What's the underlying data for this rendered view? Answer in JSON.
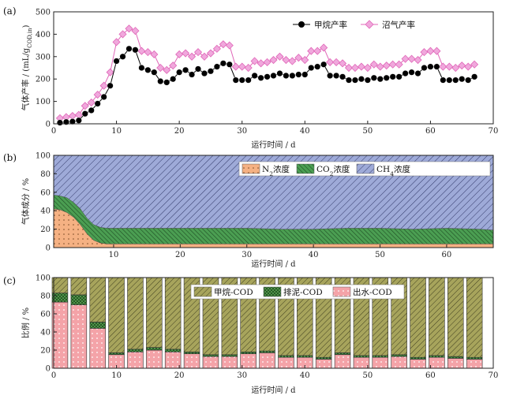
{
  "colors": {
    "methane_line": "#000000",
    "methane_marker": "#000000",
    "biogas_line": "#e066b8",
    "biogas_marker": "#f0a8dc",
    "n2_fill": "#f5b183",
    "co2_fill": "#4b9e52",
    "ch4_fill": "#9eaad8",
    "ch4_hatch": "#333a6a",
    "methane_cod_fill": "#a7a45c",
    "sludge_cod_fill": "#5aa352",
    "effluent_cod_fill": "#f4a3a8"
  },
  "chart_data": [
    {
      "panel_label": "(a)",
      "type": "line",
      "xlabel": "运行时间 / d",
      "ylabel_main": "气体产率 / (mL/g",
      "ylabel_sub": "COD,in",
      "ylabel_end": ")",
      "xlim": [
        0,
        70
      ],
      "ylim": [
        0,
        500
      ],
      "xticks": [
        "0",
        "10",
        "20",
        "30",
        "40",
        "50",
        "60",
        "70"
      ],
      "yticks": [
        "0",
        "100",
        "200",
        "300",
        "400",
        "500"
      ],
      "legend": "top-right",
      "x": [
        1,
        2,
        3,
        4,
        5,
        6,
        7,
        8,
        9,
        10,
        11,
        12,
        13,
        14,
        15,
        16,
        17,
        18,
        19,
        20,
        21,
        22,
        23,
        24,
        25,
        26,
        27,
        28,
        29,
        30,
        31,
        32,
        33,
        34,
        35,
        36,
        37,
        38,
        39,
        40,
        41,
        42,
        43,
        44,
        45,
        46,
        47,
        48,
        49,
        50,
        51,
        52,
        53,
        54,
        55,
        56,
        57,
        58,
        59,
        60,
        61,
        62,
        63,
        64,
        65,
        66,
        67
      ],
      "series": [
        {
          "name": "甲烷产率",
          "values": [
            5,
            8,
            10,
            15,
            45,
            60,
            90,
            120,
            170,
            280,
            300,
            335,
            330,
            250,
            240,
            230,
            190,
            185,
            200,
            230,
            240,
            220,
            245,
            225,
            235,
            255,
            270,
            265,
            195,
            195,
            195,
            215,
            205,
            210,
            215,
            225,
            215,
            215,
            220,
            220,
            250,
            255,
            265,
            215,
            215,
            210,
            195,
            195,
            200,
            195,
            205,
            200,
            205,
            210,
            210,
            225,
            230,
            225,
            250,
            255,
            255,
            195,
            195,
            195,
            200,
            195,
            210
          ]
        },
        {
          "name": "沼气产率",
          "values": [
            25,
            30,
            35,
            40,
            80,
            95,
            130,
            170,
            230,
            365,
            400,
            425,
            415,
            325,
            320,
            310,
            250,
            240,
            260,
            310,
            315,
            300,
            320,
            300,
            315,
            335,
            355,
            350,
            255,
            255,
            250,
            280,
            270,
            275,
            285,
            300,
            285,
            280,
            295,
            285,
            325,
            325,
            340,
            275,
            275,
            270,
            250,
            250,
            255,
            250,
            265,
            255,
            260,
            265,
            265,
            290,
            290,
            285,
            320,
            325,
            325,
            255,
            255,
            250,
            260,
            255,
            265
          ]
        }
      ]
    },
    {
      "panel_label": "(b)",
      "type": "area",
      "stacked": true,
      "xlabel": "运行时间 / d",
      "ylabel": "气体成分 / %",
      "xlim": [
        1,
        67
      ],
      "ylim": [
        0,
        100
      ],
      "xticks": [
        "10",
        "20",
        "30",
        "40",
        "50",
        "60"
      ],
      "yticks": [
        "0",
        "20",
        "40",
        "60",
        "80",
        "100"
      ],
      "legend": "top-right",
      "x": [
        1,
        2,
        3,
        4,
        5,
        6,
        7,
        8,
        9,
        10,
        12,
        15,
        20,
        25,
        30,
        35,
        40,
        45,
        50,
        55,
        60,
        65,
        67
      ],
      "series": [
        {
          "name": "N2浓度",
          "legend_main": "N",
          "legend_sub": "2",
          "legend_end": "浓度",
          "values": [
            42,
            41,
            38,
            33,
            25,
            15,
            8,
            5,
            4,
            4,
            4,
            4,
            4,
            4,
            4,
            4,
            4,
            4,
            4,
            4,
            4,
            4,
            4
          ]
        },
        {
          "name": "CO2浓度",
          "legend_main": "CO",
          "legend_sub": "2",
          "legend_end": "浓度",
          "values": [
            15,
            15,
            16,
            16,
            17,
            17,
            17,
            17,
            17,
            17,
            17,
            17,
            17,
            17,
            17,
            16,
            16,
            17,
            17,
            16,
            17,
            16,
            15
          ]
        },
        {
          "name": "CH4浓度",
          "legend_main": "CH",
          "legend_sub": "4",
          "legend_end": "浓度",
          "values": [
            43,
            44,
            46,
            51,
            58,
            68,
            75,
            78,
            79,
            79,
            79,
            79,
            79,
            79,
            79,
            80,
            80,
            79,
            79,
            80,
            79,
            80,
            81
          ]
        }
      ]
    },
    {
      "panel_label": "(c)",
      "type": "bar",
      "stacked": true,
      "xlabel": "运行时间 / d",
      "ylabel": "比例 / %",
      "xlim": [
        0,
        70
      ],
      "ylim": [
        0,
        100
      ],
      "xticks": [
        "0",
        "10",
        "20",
        "30",
        "40",
        "50",
        "60",
        "70"
      ],
      "yticks": [
        "0",
        "20",
        "40",
        "60",
        "80",
        "100"
      ],
      "legend": "top-right",
      "x": [
        1,
        4,
        7,
        10,
        13,
        16,
        19,
        22,
        25,
        28,
        31,
        34,
        37,
        40,
        43,
        46,
        49,
        52,
        55,
        58,
        61,
        64,
        67
      ],
      "series": [
        {
          "name": "出水-COD",
          "values": [
            73,
            70,
            44,
            15,
            18,
            20,
            18,
            16,
            13,
            13,
            16,
            17,
            12,
            12,
            10,
            15,
            12,
            12,
            13,
            10,
            12,
            11,
            10
          ]
        },
        {
          "name": "排泥-COD",
          "values": [
            10,
            11,
            7,
            2,
            3,
            3,
            3,
            2,
            2,
            2,
            2,
            2,
            2,
            2,
            2,
            2,
            2,
            2,
            2,
            2,
            2,
            2,
            2
          ]
        },
        {
          "name": "甲烷-COD",
          "values": [
            17,
            19,
            49,
            83,
            79,
            77,
            79,
            82,
            85,
            85,
            82,
            81,
            86,
            86,
            88,
            83,
            86,
            86,
            85,
            88,
            86,
            87,
            88
          ]
        }
      ]
    }
  ]
}
